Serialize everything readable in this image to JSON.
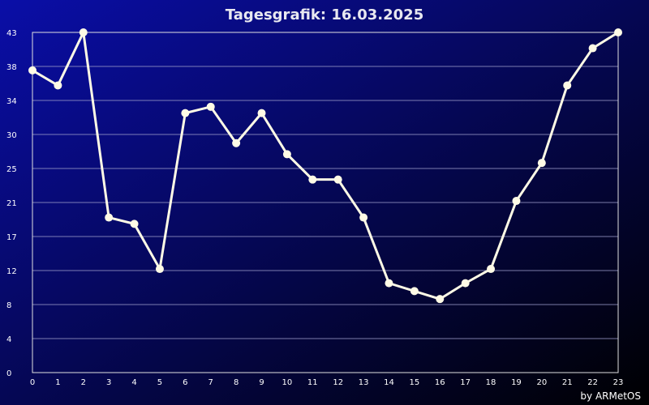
{
  "chart_data": {
    "type": "line",
    "title": "Tagesgrafik: 16.03.2025",
    "xlabel": "",
    "ylabel": "",
    "credit": "by ARMetOS",
    "x": [
      0,
      1,
      2,
      3,
      4,
      5,
      6,
      7,
      8,
      9,
      10,
      11,
      12,
      13,
      14,
      15,
      16,
      17,
      18,
      19,
      20,
      21,
      22,
      23
    ],
    "x_tick_labels": [
      "0",
      "1",
      "2",
      "3",
      "4",
      "5",
      "6",
      "7",
      "8",
      "9",
      "10",
      "11",
      "12",
      "13",
      "14",
      "15",
      "16",
      "17",
      "18",
      "19",
      "20",
      "21",
      "22",
      "23"
    ],
    "y_tick_labels": [
      "0",
      "4",
      "8",
      "12",
      "17",
      "21",
      "25",
      "30",
      "34",
      "38",
      "43"
    ],
    "ylim": [
      0,
      43
    ],
    "grid": true,
    "series": [
      {
        "values": [
          38.2,
          36.3,
          43,
          19.6,
          18.8,
          13.1,
          32.8,
          33.6,
          29,
          32.8,
          27.6,
          24.4,
          24.4,
          19.6,
          11.3,
          10.3,
          9.3,
          11.3,
          13.1,
          21.7,
          26.5,
          36.3,
          41,
          43
        ]
      }
    ],
    "colors": {
      "line": "#fffbe6",
      "background_start": "#0a0ea8",
      "background_end": "#000000"
    }
  }
}
